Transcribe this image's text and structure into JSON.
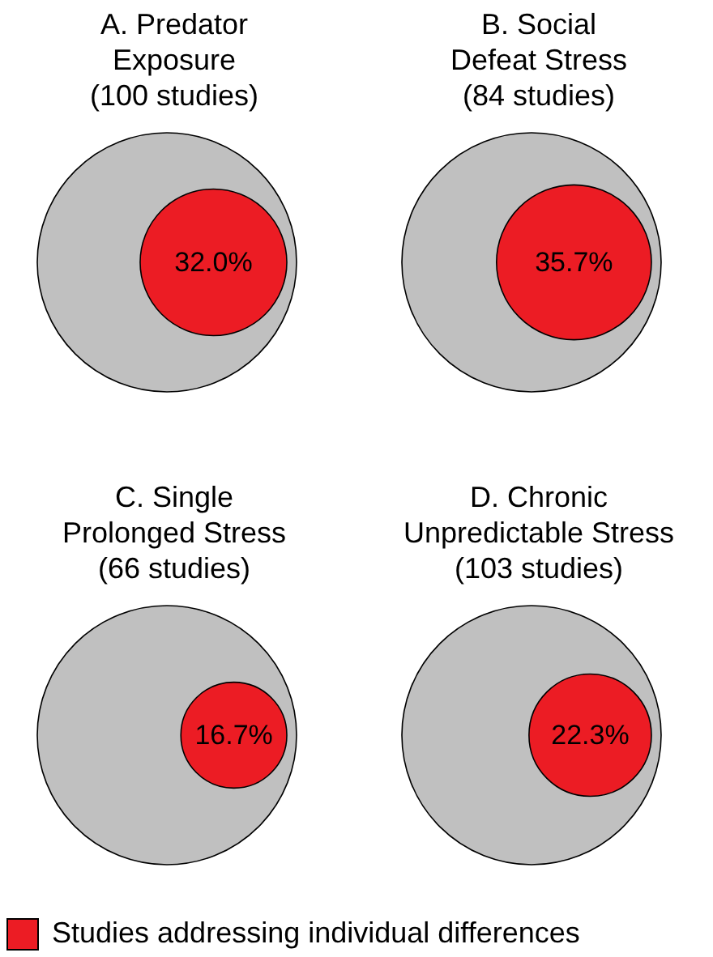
{
  "chart_data": {
    "type": "other",
    "categories": [
      "A. Predator\nExposure\n(100 studies)",
      "B. Social\nDefeat Stress\n(84 studies)",
      "C. Single\nProlonged Stress\n(66 studies)",
      "D. Chronic\nUnpredictable Stress\n(103 studies)"
    ],
    "series": [
      {
        "name": "Studies addressing individual differences",
        "color": "#ec1c24",
        "values": [
          32.0,
          35.7,
          16.7,
          22.3
        ],
        "value_labels": [
          "32.0%",
          "35.7%",
          "16.7%",
          "22.3%"
        ]
      }
    ],
    "legend": "bottom"
  }
}
